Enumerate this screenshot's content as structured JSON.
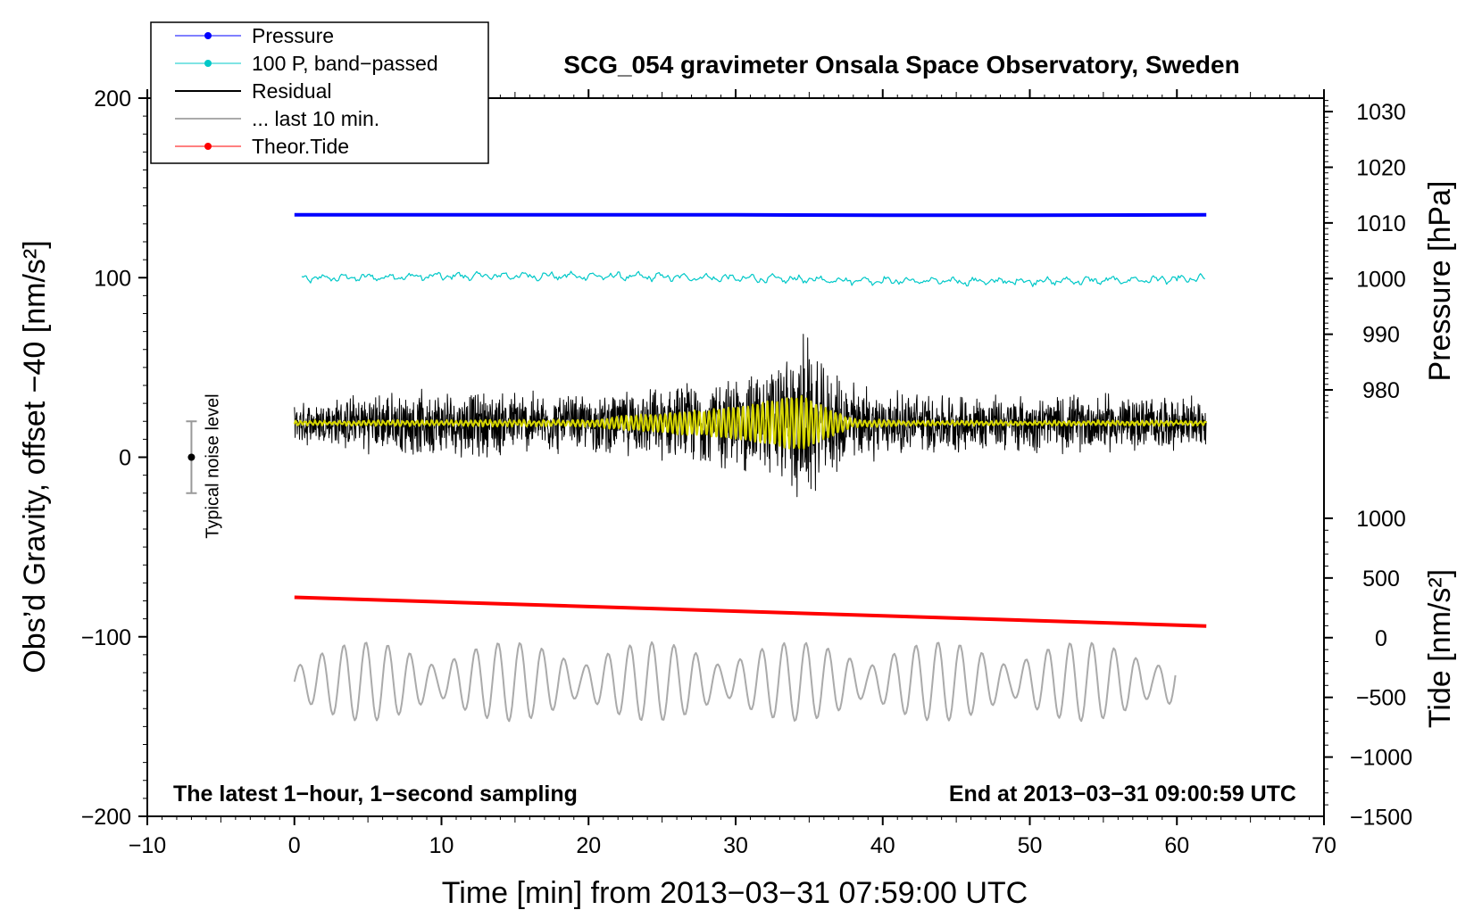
{
  "chart_data": {
    "type": "line",
    "title": "SCG_054 gravimeter Onsala Space Observatory, Sweden",
    "xlabel": "Time [min] from 2013−03−31 07:59:00 UTC",
    "ylabel_left": "Obs’d Gravity, offset −40 [nm/s²]",
    "ylabel_right_pressure": "Pressure [hPa]",
    "ylabel_right_tide": "Tide [nm/s²]",
    "footer_left": "The latest 1−hour, 1−second sampling",
    "footer_right": "End at 2013−03−31 09:00:59 UTC",
    "noise_label": "Typical noise level",
    "noise_bar": {
      "x": -7,
      "center": 0,
      "low": -20,
      "high": 20
    },
    "xlim": [
      -10,
      70
    ],
    "ylim_left": [
      -200,
      200
    ],
    "x_ticks": [
      {
        "value": -10,
        "label": "−10"
      },
      {
        "value": 0,
        "label": "0"
      },
      {
        "value": 10,
        "label": "10"
      },
      {
        "value": 20,
        "label": "20"
      },
      {
        "value": 30,
        "label": "30"
      },
      {
        "value": 40,
        "label": "40"
      },
      {
        "value": 50,
        "label": "50"
      },
      {
        "value": 60,
        "label": "60"
      },
      {
        "value": 70,
        "label": "70"
      }
    ],
    "y_ticks_left": [
      {
        "value": 200,
        "label": "200"
      },
      {
        "value": 100,
        "label": "100"
      },
      {
        "value": 0,
        "label": "0"
      },
      {
        "value": -100,
        "label": "−100"
      },
      {
        "value": -200,
        "label": "−200"
      }
    ],
    "pressure_axis": {
      "gravity_at_1000": 99.5,
      "gravity_per_hPa": 3.1,
      "ticks": [
        {
          "value": 1030,
          "label": "1030"
        },
        {
          "value": 1020,
          "label": "1020"
        },
        {
          "value": 1010,
          "label": "1010"
        },
        {
          "value": 1000,
          "label": "1000"
        },
        {
          "value": 990,
          "label": "990"
        },
        {
          "value": 980,
          "label": "980"
        }
      ]
    },
    "tide_axis": {
      "gravity_at_0": -100.5,
      "gravity_per_unit": 0.0665,
      "ticks": [
        {
          "value": 1000,
          "label": "1000"
        },
        {
          "value": 500,
          "label": "500"
        },
        {
          "value": 0,
          "label": "0"
        },
        {
          "value": -500,
          "label": "−500"
        },
        {
          "value": -1000,
          "label": "−1000"
        },
        {
          "value": -1500,
          "label": "−1500"
        }
      ]
    },
    "legend": [
      {
        "label": "Pressure",
        "color": "#0000ff",
        "marker": true,
        "width": 1
      },
      {
        "label": "100 P, band−passed",
        "color": "#00c8c8",
        "marker": true,
        "width": 1
      },
      {
        "label": "Residual",
        "color": "#000000",
        "marker": false,
        "width": 2
      },
      {
        "label": "... last 10 min.",
        "color": "#aaaaaa",
        "marker": false,
        "width": 2
      },
      {
        "label": "Theor.Tide",
        "color": "#ff0000",
        "marker": true,
        "width": 1
      }
    ],
    "series": [
      {
        "name": "Pressure",
        "color": "#0000ff",
        "x": [
          0,
          10,
          20,
          30,
          40,
          50,
          62
        ],
        "values": [
          135,
          135,
          135,
          135,
          134.8,
          134.8,
          135
        ]
      },
      {
        "name": "100 P, band−passed",
        "color": "#00c8c8",
        "x_range": [
          0.5,
          62
        ],
        "center": 99.5,
        "amplitude": 2.5
      },
      {
        "name": "Residual",
        "color": "#000000",
        "x_range": [
          0,
          62
        ],
        "center": 19,
        "envelope": [
          [
            0,
            12
          ],
          [
            5,
            18
          ],
          [
            10,
            20
          ],
          [
            15,
            20
          ],
          [
            20,
            17
          ],
          [
            25,
            22
          ],
          [
            30,
            30
          ],
          [
            33,
            38
          ],
          [
            34.7,
            55
          ],
          [
            36,
            33
          ],
          [
            40,
            20
          ],
          [
            45,
            18
          ],
          [
            50,
            17
          ],
          [
            55,
            18
          ],
          [
            62,
            15
          ]
        ]
      },
      {
        "name": "Residual (smoothed)",
        "color": "#d6d600",
        "x_range": [
          0,
          62
        ],
        "center": 19,
        "envelope": [
          [
            0,
            1
          ],
          [
            20,
            1.5
          ],
          [
            23,
            4
          ],
          [
            28,
            7
          ],
          [
            31,
            10
          ],
          [
            34.5,
            15
          ],
          [
            36,
            9
          ],
          [
            38,
            2
          ],
          [
            42,
            1
          ],
          [
            62,
            1
          ]
        ]
      },
      {
        "name": "... last 10 min.",
        "color": "#aaaaaa",
        "x_range": [
          0,
          60
        ],
        "center": -125,
        "amplitude": 22
      },
      {
        "name": "Theor.Tide",
        "color": "#ff0000",
        "x": [
          0,
          62
        ],
        "values": [
          -78,
          -94
        ]
      }
    ]
  }
}
